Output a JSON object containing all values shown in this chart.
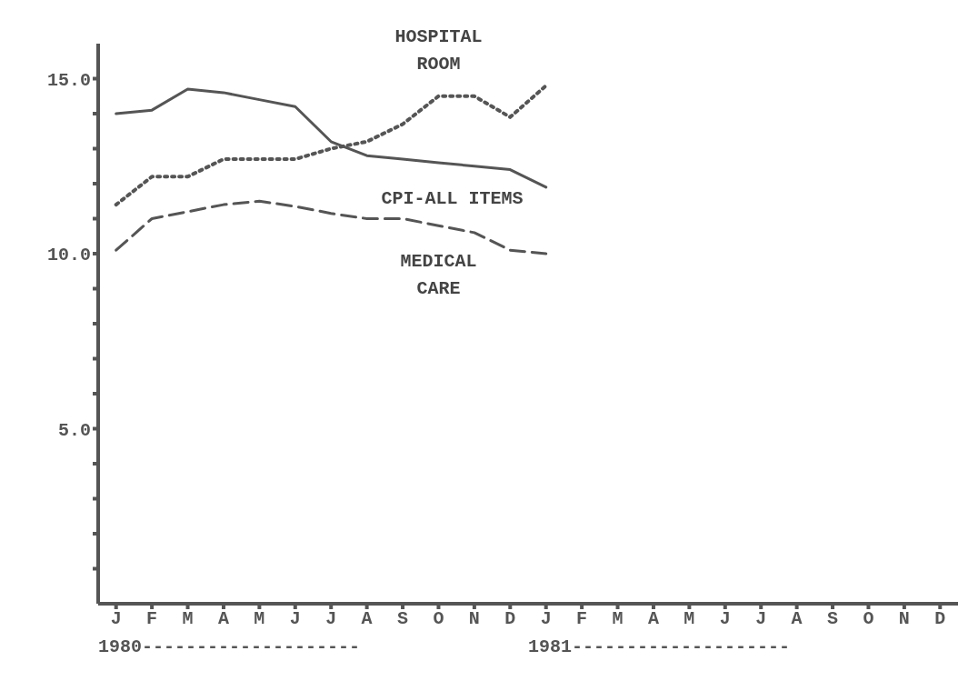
{
  "chart_data": {
    "type": "line",
    "categories": [
      "J",
      "F",
      "M",
      "A",
      "M",
      "J",
      "J",
      "A",
      "S",
      "O",
      "N",
      "D",
      "J",
      "F",
      "M",
      "A",
      "M",
      "J",
      "J",
      "A",
      "S",
      "O",
      "N",
      "D"
    ],
    "series": [
      {
        "name": "HOSPITAL\nROOM",
        "color": "#555555",
        "line_style": "dotted",
        "values": [
          11.4,
          12.2,
          12.2,
          12.7,
          12.7,
          12.7,
          13.0,
          13.2,
          13.7,
          14.5,
          14.5,
          13.9,
          14.8,
          null,
          null,
          null,
          null,
          null,
          null,
          null,
          null,
          null,
          null,
          null
        ]
      },
      {
        "name": "CPI-ALL ITEMS",
        "color": "#555555",
        "line_style": "solid",
        "values": [
          14.0,
          14.1,
          14.7,
          14.6,
          14.4,
          14.2,
          13.2,
          12.8,
          12.7,
          12.6,
          12.5,
          12.4,
          11.9,
          null,
          null,
          null,
          null,
          null,
          null,
          null,
          null,
          null,
          null,
          null
        ]
      },
      {
        "name": "MEDICAL\nCARE",
        "color": "#555555",
        "line_style": "dashed",
        "values": [
          10.1,
          11.0,
          11.2,
          11.4,
          11.5,
          11.35,
          11.15,
          11.0,
          11.0,
          10.8,
          10.6,
          10.1,
          10.0,
          null,
          null,
          null,
          null,
          null,
          null,
          null,
          null,
          null,
          null,
          null
        ]
      }
    ],
    "ylim": [
      0,
      16
    ],
    "yticks": [
      {
        "value": 1,
        "label": null
      },
      {
        "value": 2,
        "label": null
      },
      {
        "value": 3,
        "label": null
      },
      {
        "value": 4,
        "label": null
      },
      {
        "value": 5,
        "label": "5.0"
      },
      {
        "value": 6,
        "label": null
      },
      {
        "value": 7,
        "label": null
      },
      {
        "value": 8,
        "label": null
      },
      {
        "value": 9,
        "label": null
      },
      {
        "value": 10,
        "label": "10.0"
      },
      {
        "value": 11,
        "label": null
      },
      {
        "value": 12,
        "label": null
      },
      {
        "value": 13,
        "label": null
      },
      {
        "value": 14,
        "label": null
      },
      {
        "value": 15,
        "label": "15.0"
      }
    ],
    "annotations": [
      "1980--------------------",
      "1981--------------------"
    ],
    "grid": false,
    "marker": "none"
  }
}
